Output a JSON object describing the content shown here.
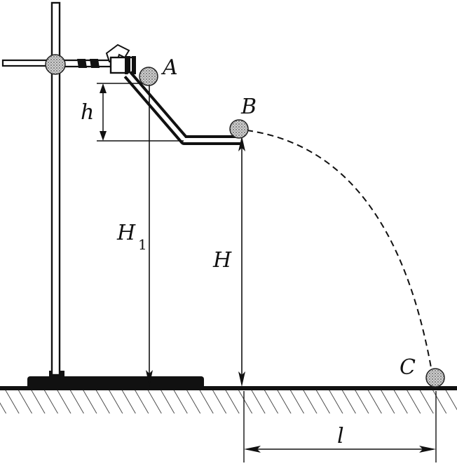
{
  "labels": {
    "point_a": "A",
    "point_b": "B",
    "point_c": "C",
    "height_h": "h",
    "height_H1": "H",
    "height_H1_sub": "1",
    "height_H": "H",
    "distance_l": "l"
  },
  "colors": {
    "ink": "#111111",
    "ball": "#bdbdbd",
    "paper": "#ffffff"
  }
}
